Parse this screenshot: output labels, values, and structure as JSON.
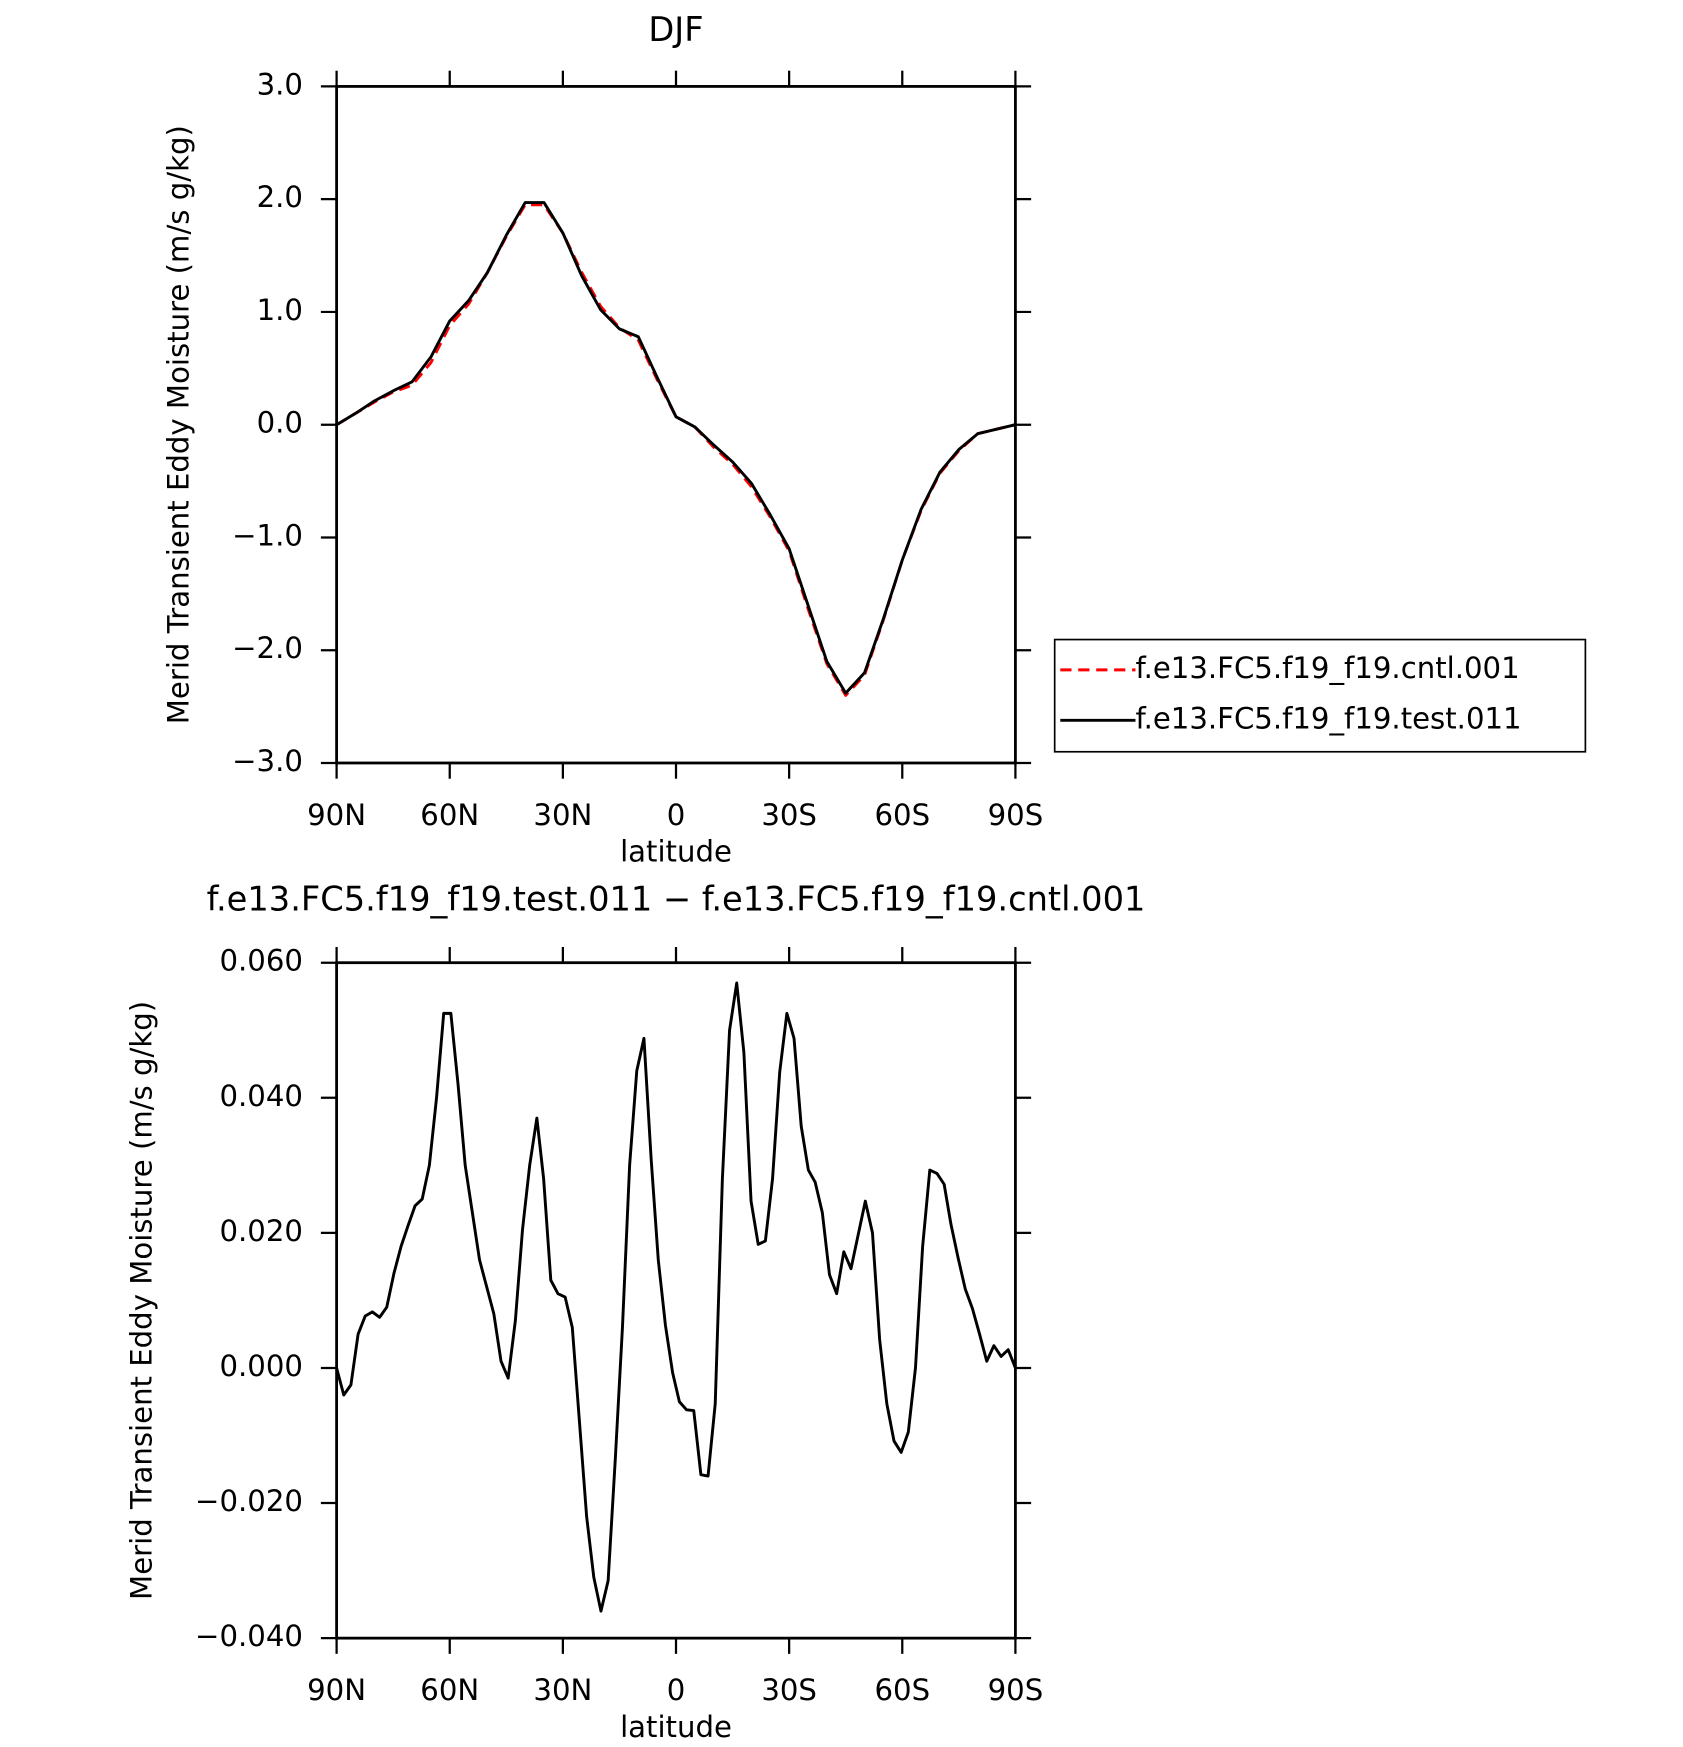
{
  "chart_data": [
    {
      "type": "line",
      "title": "DJF",
      "x_label": "latitude",
      "y_label": "Merid Transient Eddy Moisture (m/s g/kg)",
      "x": [
        90,
        85,
        80,
        75,
        70,
        65,
        60,
        55,
        50,
        45,
        40,
        35,
        30,
        25,
        20,
        15,
        10,
        5,
        0,
        -5,
        -10,
        -15,
        -20,
        -25,
        -30,
        -35,
        -40,
        -45,
        -50,
        -55,
        -60,
        -65,
        -70,
        -75,
        -80,
        -85,
        -90
      ],
      "series": [
        {
          "name": "f.e13.FC5.f19_f19.cntl.001",
          "color": "#ff0000",
          "linestyle": "dashed",
          "values": [
            0,
            0.1,
            0.2,
            0.29,
            0.35,
            0.55,
            0.88,
            1.07,
            1.35,
            1.67,
            1.95,
            1.95,
            1.7,
            1.35,
            1.05,
            0.86,
            0.75,
            0.4,
            0.07,
            -0.02,
            -0.2,
            -0.35,
            -0.55,
            -0.82,
            -1.12,
            -1.63,
            -2.12,
            -2.4,
            -2.22,
            -1.73,
            -1.2,
            -0.76,
            -0.43,
            -0.23,
            -0.08,
            -0.04,
            0
          ]
        },
        {
          "name": "f.e13.FC5.f19_f19.test.011",
          "color": "#000000",
          "linestyle": "solid",
          "values": [
            0,
            0.1,
            0.21,
            0.3,
            0.38,
            0.6,
            0.92,
            1.1,
            1.35,
            1.68,
            1.97,
            1.97,
            1.7,
            1.32,
            1.02,
            0.85,
            0.78,
            0.42,
            0.07,
            -0.02,
            -0.18,
            -0.33,
            -0.52,
            -0.8,
            -1.1,
            -1.6,
            -2.1,
            -2.38,
            -2.2,
            -1.72,
            -1.2,
            -0.75,
            -0.42,
            -0.22,
            -0.08,
            -0.04,
            0
          ]
        }
      ],
      "xlim": [
        90,
        -90
      ],
      "xticks": [
        {
          "value": 90,
          "label": "90N"
        },
        {
          "value": 60,
          "label": "60N"
        },
        {
          "value": 30,
          "label": "30N"
        },
        0,
        {
          "value": -30,
          "label": "30S"
        },
        {
          "value": -60,
          "label": "60S"
        },
        {
          "value": -90,
          "label": "90S"
        }
      ],
      "ylim": [
        -3,
        3
      ],
      "yticks": [
        {
          "value": -3,
          "label": "−3.0"
        },
        {
          "value": -2,
          "label": "−2.0"
        },
        {
          "value": -1,
          "label": "−1.0"
        },
        {
          "value": 0,
          "label": "0.0"
        },
        {
          "value": 1,
          "label": "1.0"
        },
        {
          "value": 2,
          "label": "2.0"
        },
        {
          "value": 3,
          "label": "3.0"
        }
      ],
      "legend": "outside-right"
    },
    {
      "type": "line",
      "title": "f.e13.FC5.f19_f19.test.011 − f.e13.FC5.f19_f19.cntl.001",
      "x_label": "latitude",
      "y_label": "Merid Transient Eddy Moisture (m/s g/kg)",
      "x": [
        90.0,
        88.1,
        86.2,
        84.3,
        82.4,
        80.5,
        78.6,
        76.7,
        74.8,
        72.9,
        71.1,
        69.2,
        67.3,
        65.4,
        63.5,
        61.6,
        59.7,
        57.8,
        55.9,
        54.0,
        52.1,
        50.2,
        48.3,
        46.4,
        44.5,
        42.6,
        40.7,
        38.8,
        36.9,
        35.1,
        33.2,
        31.3,
        29.4,
        27.5,
        25.6,
        23.7,
        21.8,
        19.9,
        18.0,
        16.1,
        14.2,
        12.3,
        10.4,
        8.5,
        6.6,
        4.7,
        2.8,
        0.9,
        -0.9,
        -2.8,
        -4.7,
        -6.6,
        -8.5,
        -10.4,
        -12.3,
        -14.2,
        -16.1,
        -18.0,
        -19.9,
        -21.8,
        -23.7,
        -25.6,
        -27.5,
        -29.4,
        -31.3,
        -33.2,
        -35.1,
        -36.9,
        -38.8,
        -40.7,
        -42.6,
        -44.5,
        -46.4,
        -48.3,
        -50.2,
        -52.1,
        -54.0,
        -55.9,
        -57.8,
        -59.7,
        -61.6,
        -63.5,
        -65.4,
        -67.3,
        -69.2,
        -71.1,
        -72.9,
        -74.8,
        -76.7,
        -78.6,
        -80.5,
        -82.4,
        -84.3,
        -86.2,
        -88.1,
        -90.0
      ],
      "series": [
        {
          "color": "#000000",
          "linestyle": "solid",
          "values": [
            0,
            -0.004,
            -0.0025,
            0.005,
            0.0077,
            0.0083,
            0.0075,
            0.009,
            0.014,
            0.018,
            0.021,
            0.024,
            0.025,
            0.03,
            0.04,
            0.0525,
            0.0525,
            0.042,
            0.03,
            0.023,
            0.016,
            0.012,
            0.008,
            0.001,
            -0.0015,
            0.007,
            0.0205,
            0.03,
            0.037,
            0.028,
            0.013,
            0.011,
            0.0105,
            0.006,
            -0.008,
            -0.022,
            -0.031,
            -0.036,
            -0.0315,
            -0.0135,
            0.006,
            0.03,
            0.044,
            0.0488,
            0.031,
            0.016,
            0.0063,
            -0.0007,
            -0.005,
            -0.0062,
            -0.0063,
            -0.0158,
            -0.016,
            -0.0053,
            0.028,
            0.05,
            0.057,
            0.0467,
            0.0247,
            0.0183,
            0.0188,
            0.028,
            0.0438,
            0.0525,
            0.0488,
            0.0358,
            0.0293,
            0.0275,
            0.023,
            0.0138,
            0.011,
            0.0172,
            0.0147,
            0.0197,
            0.0247,
            0.02,
            0.0042,
            -0.0053,
            -0.0108,
            -0.0125,
            -0.0095,
            0,
            0.018,
            0.0293,
            0.0288,
            0.0272,
            0.0213,
            0.0163,
            0.0117,
            0.0088,
            0.005,
            0.001,
            0.0033,
            0.0017,
            0.0027,
            0
          ]
        }
      ],
      "xlim": [
        90,
        -90
      ],
      "xticks": [
        {
          "value": 90,
          "label": "90N"
        },
        {
          "value": 60,
          "label": "60N"
        },
        {
          "value": 30,
          "label": "30N"
        },
        0,
        {
          "value": -30,
          "label": "30S"
        },
        {
          "value": -60,
          "label": "60S"
        },
        {
          "value": -90,
          "label": "90S"
        }
      ],
      "ylim": [
        -0.04,
        0.06
      ],
      "yticks": [
        {
          "value": -0.04,
          "label": "−0.040"
        },
        {
          "value": -0.02,
          "label": "−0.020"
        },
        {
          "value": 0,
          "label": "0.000"
        },
        {
          "value": 0.02,
          "label": "0.020"
        },
        {
          "value": 0.04,
          "label": "0.040"
        },
        {
          "value": 0.06,
          "label": "0.060"
        }
      ]
    }
  ]
}
